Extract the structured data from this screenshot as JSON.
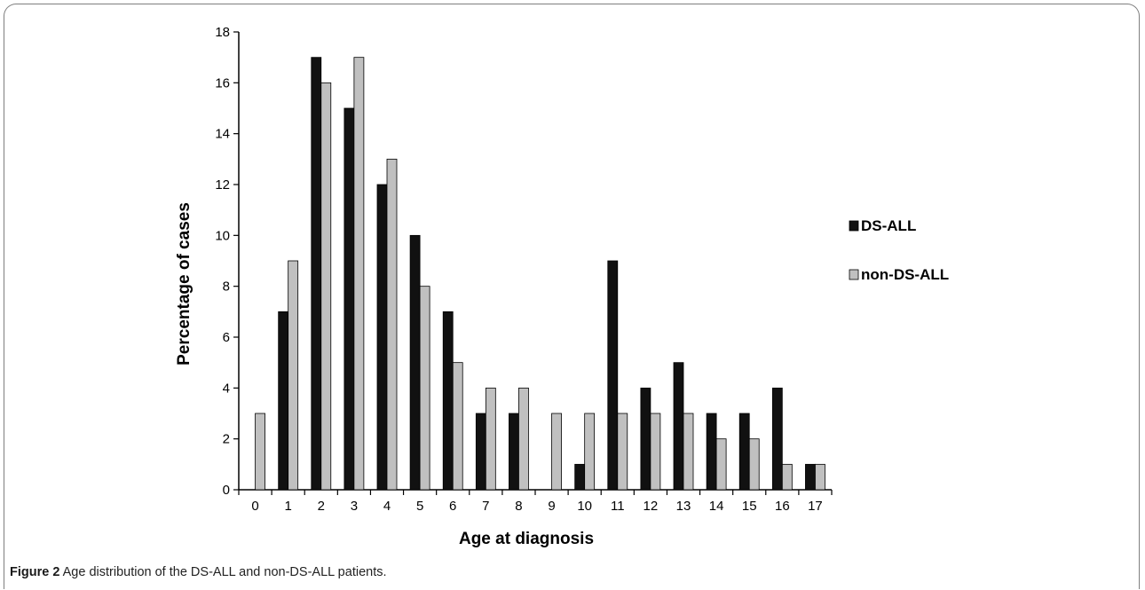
{
  "figure": {
    "caption_label": "Figure 2",
    "caption_text": " Age distribution of the DS-ALL and non-DS-ALL patients."
  },
  "chart_data": {
    "type": "bar",
    "xlabel": "Age at diagnosis",
    "ylabel": "Percentage of cases",
    "categories": [
      "0",
      "1",
      "2",
      "3",
      "4",
      "5",
      "6",
      "7",
      "8",
      "9",
      "10",
      "11",
      "12",
      "13",
      "14",
      "15",
      "16",
      "17"
    ],
    "ylim": [
      0,
      18
    ],
    "yticks": [
      0,
      2,
      4,
      6,
      8,
      10,
      12,
      14,
      16,
      18
    ],
    "grid": false,
    "legend_position": "right",
    "series": [
      {
        "name": "DS-ALL",
        "color": "#111111",
        "values": [
          0,
          7,
          17,
          15,
          12,
          10,
          7,
          3,
          3,
          0,
          1,
          9,
          4,
          5,
          3,
          3,
          4,
          1
        ]
      },
      {
        "name": "non-DS-ALL",
        "color": "#c0c0c0",
        "values": [
          3,
          9,
          16,
          17,
          13,
          8,
          5,
          4,
          4,
          3,
          3,
          3,
          3,
          3,
          2,
          2,
          1,
          1
        ]
      }
    ]
  }
}
